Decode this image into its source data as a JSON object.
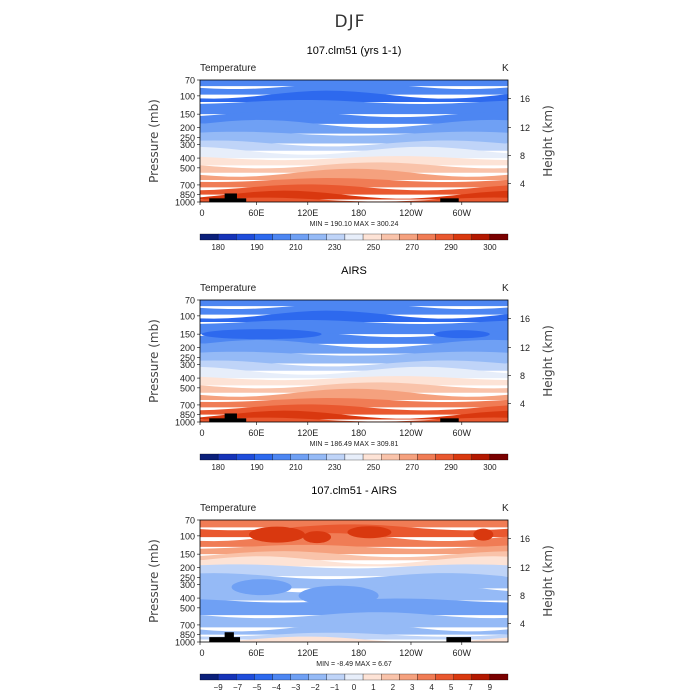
{
  "figure": {
    "title": "DJF"
  },
  "chart_data": [
    {
      "type": "heatmap",
      "title": "107.clm51 (yrs 1-1)",
      "left_label": "Temperature",
      "right_label": "K",
      "ylabel": "Pressure (mb)",
      "y2label": "Height (km)",
      "yticks": [
        "70",
        "100",
        "150",
        "200",
        "250",
        "300",
        "400",
        "500",
        "700",
        "850",
        "1000"
      ],
      "y2ticks": [
        "16",
        "12",
        "8",
        "4"
      ],
      "xticks": [
        "0",
        "60E",
        "120E",
        "180",
        "120W",
        "60W"
      ],
      "stats": "MIN = 190.10   MAX = 300.24",
      "colorbar_ticks": [
        "180",
        "190",
        "210",
        "230",
        "250",
        "270",
        "290",
        "300"
      ],
      "colors": [
        "#0a1f7a",
        "#1533b8",
        "#1f4ddb",
        "#2d69ee",
        "#4d86f2",
        "#6fa0f4",
        "#95baf6",
        "#bfd4f8",
        "#e7eefa",
        "#fde3d6",
        "#f9c3aa",
        "#f5a17e",
        "#f07c55",
        "#e9582f",
        "#d9380f",
        "#b31800",
        "#7a0000"
      ],
      "zlim": [
        175,
        305
      ]
    },
    {
      "type": "heatmap",
      "title": "AIRS",
      "left_label": "Temperature",
      "right_label": "K",
      "ylabel": "Pressure (mb)",
      "y2label": "Height (km)",
      "yticks": [
        "70",
        "100",
        "150",
        "200",
        "250",
        "300",
        "400",
        "500",
        "700",
        "850",
        "1000"
      ],
      "y2ticks": [
        "16",
        "12",
        "8",
        "4"
      ],
      "xticks": [
        "0",
        "60E",
        "120E",
        "180",
        "120W",
        "60W"
      ],
      "stats": "MIN = 186.49   MAX = 309.81",
      "colorbar_ticks": [
        "180",
        "190",
        "210",
        "230",
        "250",
        "270",
        "290",
        "300"
      ],
      "colors": [
        "#0a1f7a",
        "#1533b8",
        "#1f4ddb",
        "#2d69ee",
        "#4d86f2",
        "#6fa0f4",
        "#95baf6",
        "#bfd4f8",
        "#e7eefa",
        "#fde3d6",
        "#f9c3aa",
        "#f5a17e",
        "#f07c55",
        "#e9582f",
        "#d9380f",
        "#b31800",
        "#7a0000"
      ],
      "zlim": [
        175,
        305
      ]
    },
    {
      "type": "heatmap",
      "title": "107.clm51 - AIRS",
      "left_label": "Temperature",
      "right_label": "K",
      "ylabel": "Pressure (mb)",
      "y2label": "Height (km)",
      "yticks": [
        "70",
        "100",
        "150",
        "200",
        "250",
        "300",
        "400",
        "500",
        "700",
        "850",
        "1000"
      ],
      "y2ticks": [
        "16",
        "12",
        "8",
        "4"
      ],
      "xticks": [
        "0",
        "60E",
        "120E",
        "180",
        "120W",
        "60W"
      ],
      "stats": "MIN = -8.49   MAX = 6.67",
      "colorbar_ticks": [
        "−9",
        "−7",
        "−5",
        "−4",
        "−3",
        "−2",
        "−1",
        "0",
        "1",
        "2",
        "3",
        "4",
        "5",
        "7",
        "9"
      ],
      "colors": [
        "#0a1f7a",
        "#1533b8",
        "#1f4ddb",
        "#2d69ee",
        "#4d86f2",
        "#6fa0f4",
        "#95baf6",
        "#bfd4f8",
        "#e7eefa",
        "#fde3d6",
        "#f9c3aa",
        "#f5a17e",
        "#f07c55",
        "#e9582f",
        "#d9380f",
        "#b31800",
        "#7a0000"
      ],
      "zlim": [
        -10,
        10
      ]
    }
  ]
}
